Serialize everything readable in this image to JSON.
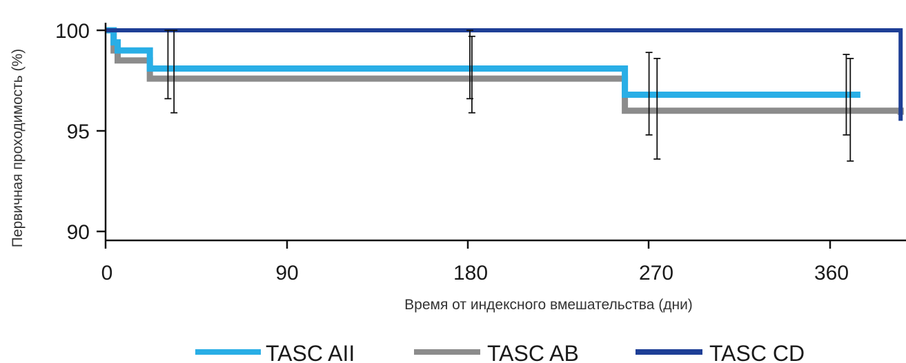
{
  "chart_data": {
    "type": "line",
    "xlabel": "Время от индексного вмешательства (дни)",
    "ylabel": "Первичная проходимость (%)",
    "xlim": [
      0,
      395
    ],
    "ylim": [
      90,
      100.5
    ],
    "x_ticks": [
      "0",
      "90",
      "180",
      "270",
      "360"
    ],
    "y_ticks": [
      "100",
      "95",
      "90"
    ],
    "grid": false,
    "legend_position": "bottom",
    "series": [
      {
        "name": "TASC AII",
        "color": "#29aee6",
        "x": [
          0,
          3,
          4,
          6,
          22,
          258,
          375
        ],
        "y": [
          100,
          100,
          99.4,
          99.0,
          98.1,
          96.8,
          96.8
        ]
      },
      {
        "name": "TASC AB",
        "color": "#8c8c8c",
        "x": [
          0,
          3,
          4,
          6,
          22,
          258,
          395
        ],
        "y": [
          100,
          100,
          99.0,
          98.5,
          97.6,
          96.0,
          95.8
        ]
      },
      {
        "name": "TASC CD",
        "color": "#1e3f96",
        "x": [
          0,
          378,
          395
        ],
        "y": [
          100,
          100,
          95.5
        ]
      }
    ],
    "error_bars": [
      {
        "x": 31,
        "low": 96.6,
        "high": 100
      },
      {
        "x": 34,
        "low": 95.9,
        "high": 100
      },
      {
        "x": 181,
        "low": 96.6,
        "high": 100
      },
      {
        "x": 182,
        "low": 95.9,
        "high": 99.7
      },
      {
        "x": 270,
        "low": 94.8,
        "high": 98.9
      },
      {
        "x": 274,
        "low": 93.6,
        "high": 98.6
      },
      {
        "x": 368,
        "low": 94.8,
        "high": 98.8
      },
      {
        "x": 370,
        "low": 93.5,
        "high": 98.6
      }
    ]
  }
}
